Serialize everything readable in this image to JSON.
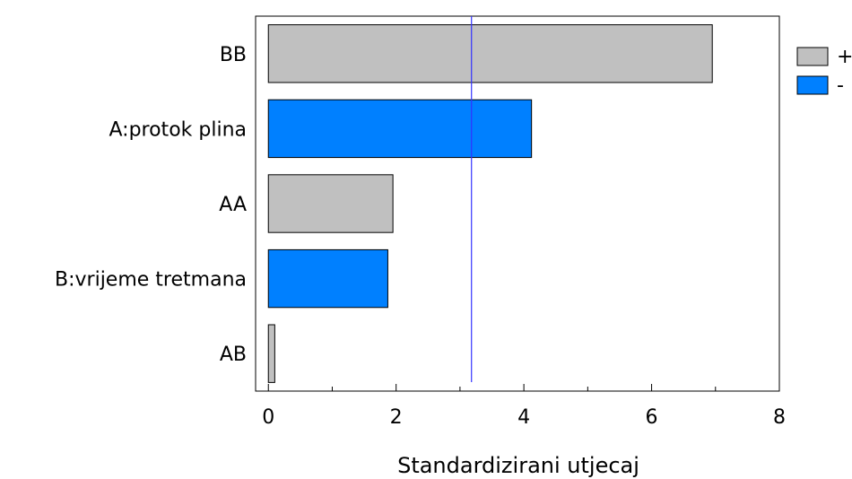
{
  "chart_data": {
    "type": "bar",
    "orientation": "horizontal",
    "categories": [
      "BB",
      "A:protok plina",
      "AA",
      "B:vrijeme tretmana",
      "AB"
    ],
    "values": [
      6.95,
      4.12,
      1.95,
      1.87,
      0.1
    ],
    "signs": [
      "+",
      "-",
      "+",
      "-",
      "+"
    ],
    "xlabel": "Standardizirani utjecaj",
    "ylabel": "",
    "xlim": [
      -0.2,
      8.0
    ],
    "xticks": [
      "0",
      "2",
      "4",
      "6",
      "8"
    ],
    "reference_line": 3.18,
    "grid": false,
    "legend": {
      "placement": "top-right",
      "entries": [
        {
          "label": "+",
          "color": "#c0c0c0"
        },
        {
          "label": "-",
          "color": "#0080ff"
        }
      ]
    },
    "colors": {
      "positive": "#c0c0c0",
      "negative": "#0080ff",
      "reference_line": "#3333ff",
      "bar_border": "#000000"
    }
  }
}
